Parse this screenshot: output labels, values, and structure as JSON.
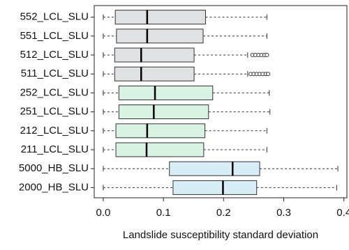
{
  "chart_data": {
    "type": "boxplot",
    "orientation": "horizontal",
    "xlabel": "Landslide susceptibility standard deviation",
    "categories": [
      "552_LCL_SLU",
      "551_LCL_SLU",
      "512_LCL_SLU",
      "511_LCL_SLU",
      "252_LCL_SLU",
      "251_LCL_SLU",
      "212_LCL_SLU",
      "211_LCL_SLU",
      "5000_HB_SLU",
      "2000_HB_SLU"
    ],
    "colors": [
      "#dfe1e2",
      "#dfe1e2",
      "#dfe1e2",
      "#dfe1e2",
      "#d9f2e3",
      "#d9f2e3",
      "#d9f2e3",
      "#d9f2e3",
      "#d8edf5",
      "#d8edf5"
    ],
    "min": [
      0,
      0,
      0,
      0,
      0,
      0,
      0,
      0,
      0,
      0
    ],
    "q1": [
      0.02,
      0.022,
      0.019,
      0.019,
      0.026,
      0.026,
      0.021,
      0.021,
      0.11,
      0.116
    ],
    "median": [
      0.073,
      0.073,
      0.063,
      0.063,
      0.086,
      0.084,
      0.073,
      0.072,
      0.215,
      0.199
    ],
    "q3": [
      0.17,
      0.166,
      0.151,
      0.151,
      0.182,
      0.175,
      0.169,
      0.167,
      0.26,
      0.255
    ],
    "max": [
      0.272,
      0.272,
      0.24,
      0.24,
      0.276,
      0.277,
      0.272,
      0.272,
      0.39,
      0.388
    ],
    "outliers": [
      [],
      [],
      [
        0.248,
        0.253,
        0.258,
        0.263,
        0.268,
        0.272
      ],
      [
        0.245,
        0.25,
        0.255,
        0.26,
        0.265,
        0.27,
        0.274
      ],
      [],
      [],
      [],
      [],
      [],
      []
    ],
    "xlim": [
      -0.015,
      0.405
    ],
    "xticks": [
      {
        "value": 0,
        "label": "0.0"
      },
      0.1,
      0.2,
      0.3,
      0.4
    ]
  }
}
